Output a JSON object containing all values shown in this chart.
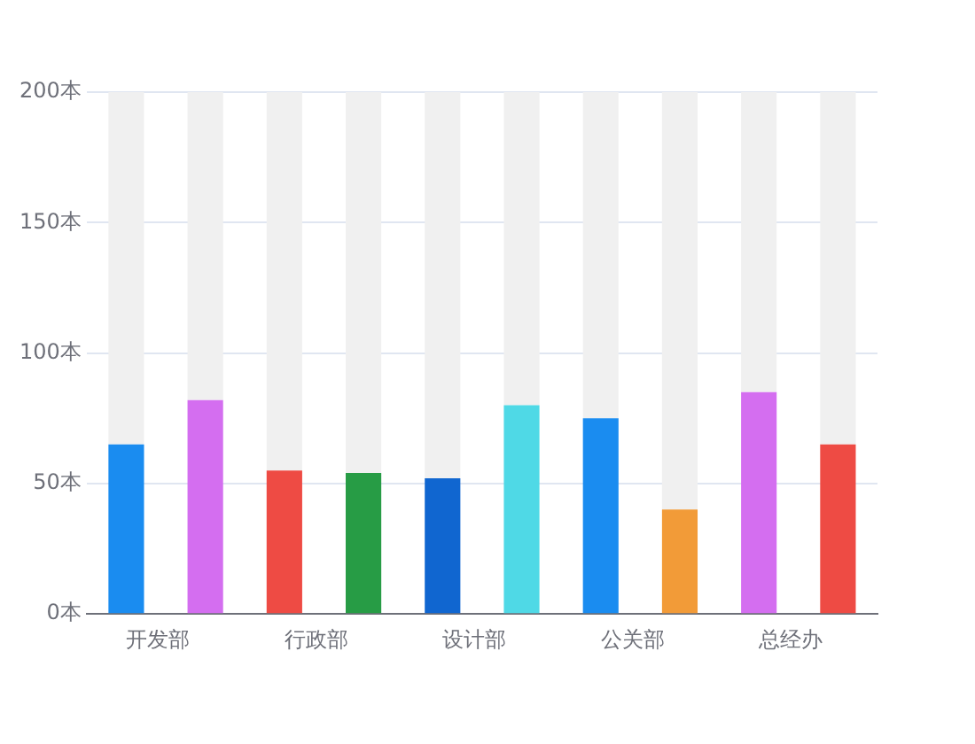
{
  "chart_data": {
    "type": "bar",
    "categories": [
      "开发部",
      null,
      "行政部",
      null,
      "设计部",
      null,
      "公关部",
      null,
      "总经办",
      null
    ],
    "series": [
      {
        "colors": [
          "#1a8cf0",
          "#d46ef0",
          "#ee4b44",
          "#279c45",
          "#1066d0",
          "#4fd9e6",
          "#1a8cf0",
          "#f29b38",
          "#d46ef0",
          "#ee4b44"
        ],
        "values": [
          65,
          82,
          55,
          54,
          52,
          80,
          75,
          40,
          85,
          65
        ]
      },
      {
        "color": "#f0f0f0",
        "values": [
          135,
          118,
          145,
          146,
          148,
          120,
          125,
          160,
          115,
          135
        ]
      }
    ],
    "stacked": true,
    "ylim": [
      0,
      200
    ],
    "yticks": [
      {
        "value": 0,
        "label": "0本"
      },
      {
        "value": 50,
        "label": "50本"
      },
      {
        "value": 100,
        "label": "100本"
      },
      {
        "value": 150,
        "label": "150本"
      },
      {
        "value": 200,
        "label": "200本"
      }
    ],
    "grid": "y",
    "legend": false
  }
}
